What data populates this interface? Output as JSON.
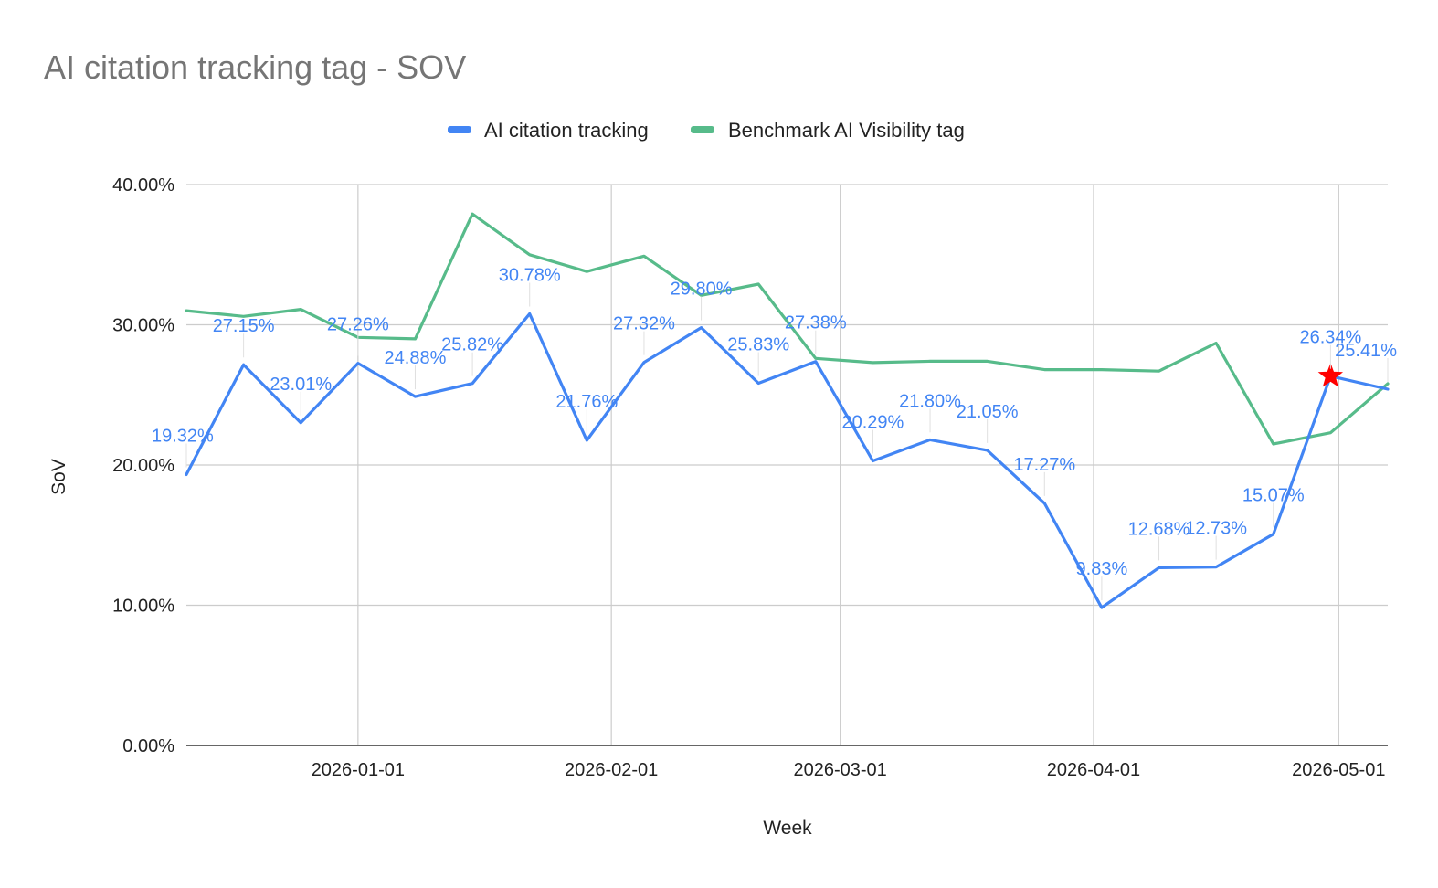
{
  "chart_data": {
    "type": "line",
    "title": "AI citation tracking tag - SOV",
    "xlabel": "Week",
    "ylabel": "SoV",
    "ylim": [
      0,
      40
    ],
    "y_ticks": [
      "0.00%",
      "10.00%",
      "20.00%",
      "30.00%",
      "40.00%"
    ],
    "x_ticks": [
      "2026-01-01",
      "2026-02-01",
      "2026-03-01",
      "2026-04-01",
      "2026-05-01"
    ],
    "x_range": [
      "2025-12-11",
      "2026-05-07"
    ],
    "grid": true,
    "legend_position": "top",
    "x": [
      "2025-12-11",
      "2025-12-18",
      "2025-12-25",
      "2026-01-01",
      "2026-01-08",
      "2026-01-15",
      "2026-01-22",
      "2026-01-29",
      "2026-02-05",
      "2026-02-12",
      "2026-02-19",
      "2026-02-26",
      "2026-03-05",
      "2026-03-12",
      "2026-03-19",
      "2026-03-26",
      "2026-04-02",
      "2026-04-09",
      "2026-04-16",
      "2026-04-23",
      "2026-04-30",
      "2026-05-07"
    ],
    "series": [
      {
        "name": "AI citation tracking",
        "color": "#4285f4",
        "values": [
          19.32,
          27.15,
          23.01,
          27.26,
          24.88,
          25.82,
          30.78,
          21.76,
          27.32,
          29.8,
          25.83,
          27.38,
          20.29,
          21.8,
          21.05,
          17.27,
          9.83,
          12.68,
          12.73,
          15.07,
          26.34,
          25.41
        ],
        "labels": [
          "19.32%",
          "27.15%",
          "23.01%",
          "27.26%",
          "24.88%",
          "25.82%",
          "30.78%",
          "21.76%",
          "27.32%",
          "29.80%",
          "25.83%",
          "27.38%",
          "20.29%",
          "21.80%",
          "21.05%",
          "17.27%",
          "9.83%",
          "12.68%",
          "12.73%",
          "15.07%",
          "26.34%",
          "25.41%"
        ]
      },
      {
        "name": "Benchmark AI Visibility tag",
        "color": "#57bb8a",
        "values": [
          31.0,
          30.6,
          31.1,
          29.1,
          29.0,
          37.9,
          35.0,
          33.8,
          34.9,
          32.1,
          32.9,
          27.6,
          27.3,
          27.4,
          27.4,
          26.8,
          26.8,
          26.7,
          28.7,
          21.5,
          22.3,
          25.8
        ]
      }
    ],
    "highlight": {
      "series": "AI citation tracking",
      "x": "2026-04-30",
      "marker": "star",
      "color": "#ff0000"
    }
  }
}
